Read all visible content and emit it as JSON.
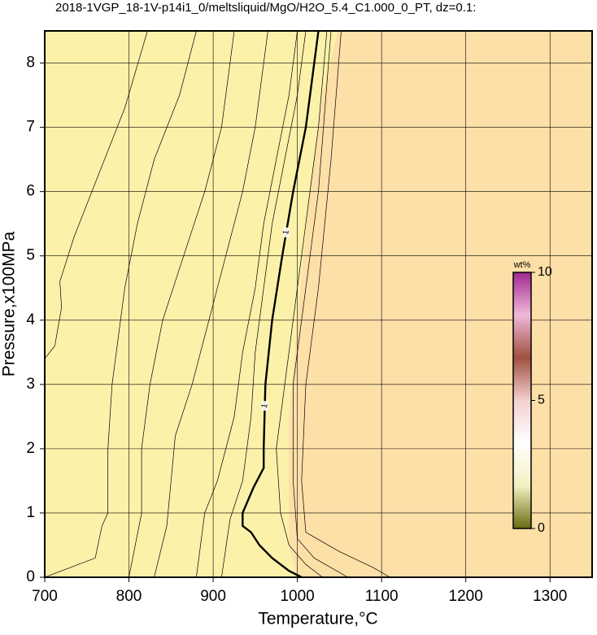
{
  "chart_data": {
    "type": "contour",
    "title": "2018-1VGP_18-1V-p14i1_0/meltsliquid/MgO/H2O_5.4_C1.000_0_PT, dz=0.1:",
    "x_label": "Temperature,°C",
    "y_label": "Pressure,x100MPa",
    "xlim": [
      700,
      1350
    ],
    "ylim": [
      0,
      8.5
    ],
    "xticks": [
      700,
      800,
      900,
      1000,
      1100,
      1200,
      1300
    ],
    "yticks": [
      0,
      1,
      2,
      3,
      4,
      5,
      6,
      7,
      8
    ],
    "grid": true,
    "background": "#fcf1a9",
    "regions": [
      {
        "color": "#fddfa8",
        "x": [
          1000,
          990,
          990,
          1000,
          1015,
          1030,
          1048,
          1350,
          1350
        ],
        "y": [
          0,
          0.5,
          2.5,
          4,
          6,
          7.5,
          8.5,
          8.5,
          0
        ]
      }
    ],
    "contours": [
      {
        "x": [
          700,
          712,
          720,
          718,
          735,
          765,
          795,
          822
        ],
        "y": [
          3.4,
          3.6,
          4.2,
          4.6,
          5.3,
          6.3,
          7.3,
          8.5
        ]
      },
      {
        "x": [
          700,
          740,
          760,
          768,
          775,
          775,
          780,
          795,
          810,
          830,
          860,
          880
        ],
        "y": [
          0,
          0.2,
          0.3,
          0.8,
          1,
          2,
          3,
          4.5,
          5.5,
          6.5,
          7.5,
          8.5
        ]
      },
      {
        "x": [
          800,
          815,
          815,
          825,
          840,
          865,
          890,
          910,
          925
        ],
        "y": [
          0,
          1,
          2,
          3,
          4,
          5,
          6,
          7,
          8.5
        ]
      },
      {
        "x": [
          830,
          845,
          850,
          855,
          875,
          895,
          915,
          935,
          950,
          965
        ],
        "y": [
          0,
          0.8,
          1.5,
          2.2,
          3,
          4,
          5,
          6,
          7,
          8.5
        ]
      },
      {
        "x": [
          880,
          890,
          905,
          925,
          935,
          950,
          960,
          975,
          990,
          1000
        ],
        "y": [
          0,
          1,
          1.5,
          2.5,
          3.5,
          4.5,
          5.5,
          6.5,
          7.5,
          8.5
        ]
      },
      {
        "x": [
          910,
          920,
          935,
          945,
          950,
          960,
          970,
          985,
          1000,
          1010
        ],
        "y": [
          0,
          0.9,
          1.5,
          2.5,
          3.5,
          4.5,
          5.5,
          6.5,
          7.5,
          8.5
        ]
      },
      {
        "x": [
          1030,
          1010,
          990,
          980,
          975,
          985,
          995,
          1005,
          1015,
          1025,
          1035
        ],
        "y": [
          0,
          0.2,
          0.5,
          1,
          2,
          3,
          4,
          5,
          6,
          7,
          8.5
        ]
      },
      {
        "x": [
          1060,
          1020,
          1000,
          995,
          995,
          1010,
          1025,
          1040
        ],
        "y": [
          0,
          0.3,
          0.6,
          1.5,
          3,
          4.5,
          6,
          8.5
        ]
      },
      {
        "x": [
          1110,
          1090,
          1050,
          1010,
          1005,
          1010,
          1025,
          1040,
          1052
        ],
        "y": [
          0,
          0.15,
          0.4,
          0.7,
          1.5,
          3,
          4.5,
          6.5,
          8.5
        ]
      },
      {
        "label": "1",
        "bold": true,
        "x": [
          1025,
          1010,
          995,
          982,
          970,
          962,
          960,
          960,
          948,
          935,
          935,
          945,
          955,
          970,
          990,
          1005
        ],
        "y": [
          8.5,
          7,
          6,
          5,
          4,
          3,
          2,
          1.7,
          1.4,
          1.0,
          0.8,
          0.7,
          0.5,
          0.3,
          0.1,
          0
        ]
      }
    ],
    "colorbar": {
      "label": "wt%",
      "lim": [
        0,
        10
      ],
      "ticks": [
        0,
        5,
        10
      ],
      "colors": [
        "#6b6b10",
        "#f2f0c0",
        "#ffffff",
        "#f4d0d0",
        "#a05040",
        "#f0b8d8",
        "#a02890"
      ]
    }
  }
}
